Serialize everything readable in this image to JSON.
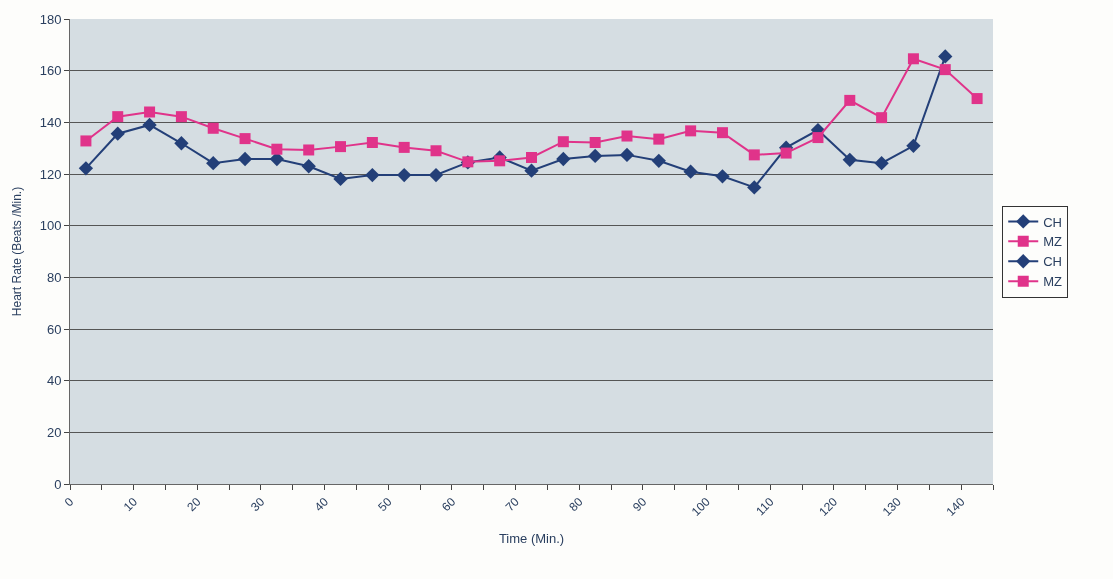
{
  "chart_data": {
    "type": "line",
    "xlabel": "Time (Min.)",
    "ylabel": "Heart Rate (Beats /Min.)",
    "x": [
      2.5,
      7.5,
      12.5,
      17.5,
      22.5,
      27.5,
      32.5,
      37.5,
      42.5,
      47.5,
      52.5,
      57.5,
      62.5,
      67.5,
      72.5,
      77.5,
      82.5,
      87.5,
      92.5,
      97.5,
      102.5,
      107.5,
      112.5,
      117.5,
      122.5,
      127.5,
      132.5,
      137.5,
      142.5
    ],
    "series": [
      {
        "name": "CH",
        "color": "#233f78",
        "marker": "diamond",
        "values": [
          122.2,
          135.6,
          139.0,
          131.9,
          124.2,
          125.8,
          125.8,
          123.0,
          118.1,
          119.6,
          119.6,
          119.6,
          124.5,
          126.4,
          121.3,
          125.8,
          127.0,
          127.4,
          125.1,
          120.9,
          119.1,
          114.8,
          130.2,
          137.0,
          125.5,
          124.2,
          130.9,
          165.5,
          null
        ]
      },
      {
        "name": "MZ",
        "color": "#e0338a",
        "marker": "square",
        "values": [
          132.8,
          142.2,
          144.0,
          142.2,
          137.7,
          133.7,
          129.6,
          129.3,
          130.6,
          132.2,
          130.3,
          129.0,
          124.7,
          125.1,
          126.4,
          132.5,
          132.2,
          134.7,
          133.5,
          136.7,
          136.0,
          127.4,
          128.1,
          134.1,
          148.5,
          141.8,
          164.6,
          160.4,
          149.2
        ]
      },
      {
        "name": "CH",
        "color": "#233f78",
        "marker": "diamond",
        "values": [
          null,
          null,
          null,
          null,
          null,
          null,
          null,
          null,
          null,
          null,
          null,
          null,
          null,
          null,
          null,
          null,
          null,
          null,
          null,
          null,
          null,
          null,
          null,
          null,
          null,
          null,
          null,
          null,
          null
        ]
      },
      {
        "name": "MZ",
        "color": "#e0338a",
        "marker": "square",
        "values": [
          null,
          null,
          null,
          null,
          null,
          null,
          null,
          null,
          null,
          null,
          null,
          null,
          null,
          null,
          null,
          null,
          null,
          null,
          null,
          null,
          null,
          null,
          null,
          null,
          null,
          null,
          null,
          null,
          null
        ]
      }
    ],
    "xlim": [
      0,
      145
    ],
    "xticks": [
      0,
      {
        "value": 5,
        "label": null
      },
      10,
      {
        "value": 15,
        "label": null
      },
      20,
      {
        "value": 25,
        "label": null
      },
      30,
      {
        "value": 35,
        "label": null
      },
      40,
      {
        "value": 45,
        "label": null
      },
      50,
      {
        "value": 55,
        "label": null
      },
      60,
      {
        "value": 65,
        "label": null
      },
      70,
      {
        "value": 75,
        "label": null
      },
      80,
      {
        "value": 85,
        "label": null
      },
      90,
      {
        "value": 95,
        "label": null
      },
      100,
      {
        "value": 105,
        "label": null
      },
      110,
      {
        "value": 115,
        "label": null
      },
      120,
      {
        "value": 125,
        "label": null
      },
      130,
      {
        "value": 135,
        "label": null
      },
      140,
      {
        "value": 145,
        "label": null
      }
    ],
    "ylim": [
      0,
      180
    ],
    "yticks": [
      0,
      20,
      40,
      60,
      80,
      100,
      120,
      140,
      160,
      180
    ],
    "grid": "y",
    "legend": "right",
    "line_style": "solid"
  }
}
